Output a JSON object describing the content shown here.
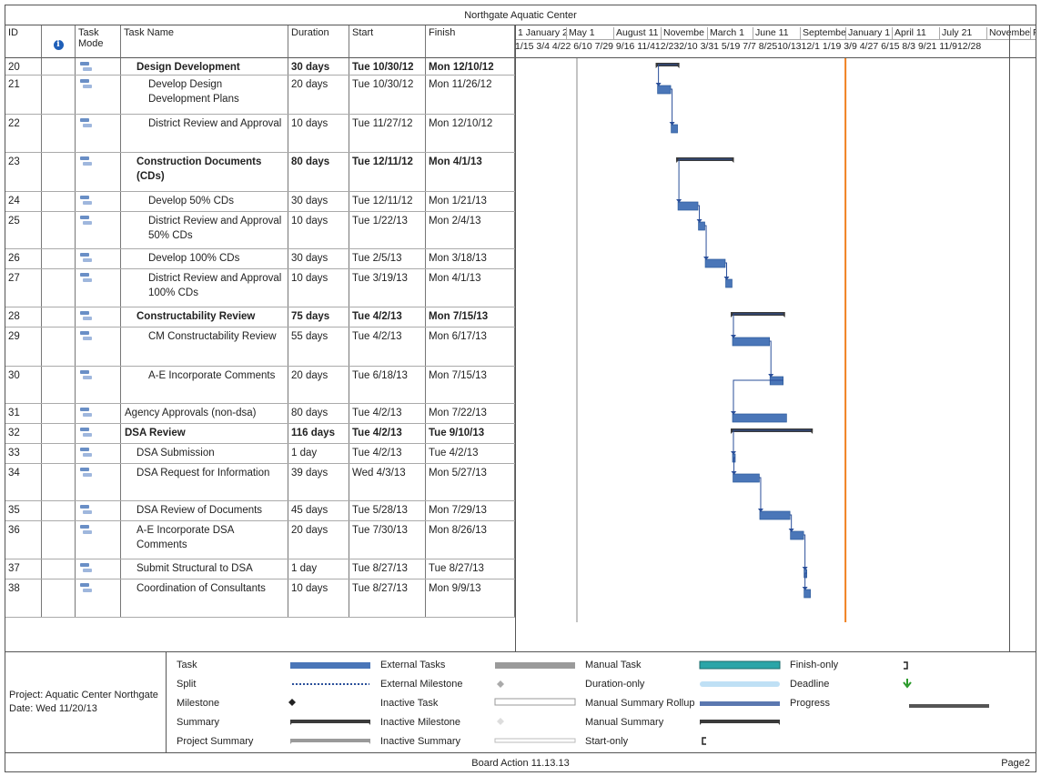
{
  "title": "Northgate Aquatic Center",
  "columns": {
    "id": "ID",
    "task_mode": "Task Mode",
    "task_name": "Task Name",
    "duration": "Duration",
    "start": "Start",
    "finish": "Finish"
  },
  "timescale_upper": [
    {
      "label": "1 January 2"
    },
    {
      "label": "May 1"
    },
    {
      "label": "August 11"
    },
    {
      "label": "Novembe"
    },
    {
      "label": "March 1"
    },
    {
      "label": "June 11"
    },
    {
      "label": "Septembe"
    },
    {
      "label": "January 1"
    },
    {
      "label": "April 11"
    },
    {
      "label": "July 21"
    },
    {
      "label": "Novembe"
    },
    {
      "label": "F"
    }
  ],
  "timescale_lower": "1/15  3/4  4/22 6/10 7/29 9/16 11/412/232/10 3/31 5/19  7/7  8/2510/1312/1 1/19  3/9  4/27 6/15  8/3  9/21 11/912/28",
  "tasks": [
    {
      "id": "20",
      "name": "Design Development",
      "duration": "30 days",
      "start": "Tue 10/30/12",
      "finish": "Mon 12/10/12",
      "bold": true,
      "indent": 1,
      "summary": true,
      "s": "2012-10-30",
      "f": "2012-12-10"
    },
    {
      "id": "21",
      "name": "Develop Design Development Plans",
      "duration": "20 days",
      "start": "Tue 10/30/12",
      "finish": "Mon 11/26/12",
      "bold": false,
      "indent": 2,
      "summary": false,
      "s": "2012-10-30",
      "f": "2012-11-26"
    },
    {
      "id": "22",
      "name": "District Review and Approval",
      "duration": "10 days",
      "start": "Tue 11/27/12",
      "finish": "Mon 12/10/12",
      "bold": false,
      "indent": 2,
      "summary": false,
      "s": "2012-11-27",
      "f": "2012-12-10"
    },
    {
      "id": "23",
      "name": "Construction Documents (CDs)",
      "duration": "80 days",
      "start": "Tue 12/11/12",
      "finish": "Mon 4/1/13",
      "bold": true,
      "indent": 1,
      "summary": true,
      "s": "2012-12-11",
      "f": "2013-04-01"
    },
    {
      "id": "24",
      "name": "Develop 50% CDs",
      "duration": "30 days",
      "start": "Tue 12/11/12",
      "finish": "Mon 1/21/13",
      "bold": false,
      "indent": 2,
      "summary": false,
      "s": "2012-12-11",
      "f": "2013-01-21"
    },
    {
      "id": "25",
      "name": "District Review and Approval 50% CDs",
      "duration": "10 days",
      "start": "Tue 1/22/13",
      "finish": "Mon 2/4/13",
      "bold": false,
      "indent": 2,
      "summary": false,
      "s": "2013-01-22",
      "f": "2013-02-04"
    },
    {
      "id": "26",
      "name": "Develop 100% CDs",
      "duration": "30 days",
      "start": "Tue 2/5/13",
      "finish": "Mon 3/18/13",
      "bold": false,
      "indent": 2,
      "summary": false,
      "s": "2013-02-05",
      "f": "2013-03-18"
    },
    {
      "id": "27",
      "name": "District Review and Approval 100% CDs",
      "duration": "10 days",
      "start": "Tue 3/19/13",
      "finish": "Mon 4/1/13",
      "bold": false,
      "indent": 2,
      "summary": false,
      "s": "2013-03-19",
      "f": "2013-04-01"
    },
    {
      "id": "28",
      "name": "Constructability Review",
      "duration": "75 days",
      "start": "Tue 4/2/13",
      "finish": "Mon 7/15/13",
      "bold": true,
      "indent": 1,
      "summary": true,
      "s": "2013-04-02",
      "f": "2013-07-15"
    },
    {
      "id": "29",
      "name": "CM Constructability Review",
      "duration": "55 days",
      "start": "Tue 4/2/13",
      "finish": "Mon 6/17/13",
      "bold": false,
      "indent": 2,
      "summary": false,
      "s": "2013-04-02",
      "f": "2013-06-17"
    },
    {
      "id": "30",
      "name": "A-E Incorporate Comments",
      "duration": "20 days",
      "start": "Tue 6/18/13",
      "finish": "Mon 7/15/13",
      "bold": false,
      "indent": 2,
      "summary": false,
      "s": "2013-06-18",
      "f": "2013-07-15"
    },
    {
      "id": "31",
      "name": "Agency Approvals (non-dsa)",
      "duration": "80 days",
      "start": "Tue 4/2/13",
      "finish": "Mon 7/22/13",
      "bold": false,
      "indent": 0,
      "summary": false,
      "s": "2013-04-02",
      "f": "2013-07-22"
    },
    {
      "id": "32",
      "name": "DSA Review",
      "duration": "116 days",
      "start": "Tue 4/2/13",
      "finish": "Tue 9/10/13",
      "bold": true,
      "indent": 0,
      "summary": true,
      "s": "2013-04-02",
      "f": "2013-09-10"
    },
    {
      "id": "33",
      "name": "DSA Submission",
      "duration": "1 day",
      "start": "Tue 4/2/13",
      "finish": "Tue 4/2/13",
      "bold": false,
      "indent": 1,
      "summary": false,
      "s": "2013-04-02",
      "f": "2013-04-02"
    },
    {
      "id": "34",
      "name": "DSA Request for Information",
      "duration": "39 days",
      "start": "Wed 4/3/13",
      "finish": "Mon 5/27/13",
      "bold": false,
      "indent": 1,
      "summary": false,
      "s": "2013-04-03",
      "f": "2013-05-27"
    },
    {
      "id": "35",
      "name": "DSA Review of Documents",
      "duration": "45 days",
      "start": "Tue 5/28/13",
      "finish": "Mon 7/29/13",
      "bold": false,
      "indent": 1,
      "summary": false,
      "s": "2013-05-28",
      "f": "2013-07-29"
    },
    {
      "id": "36",
      "name": "A-E Incorporate DSA Comments",
      "duration": "20 days",
      "start": "Tue 7/30/13",
      "finish": "Mon 8/26/13",
      "bold": false,
      "indent": 1,
      "summary": false,
      "s": "2013-07-30",
      "f": "2013-08-26"
    },
    {
      "id": "37",
      "name": "Submit Structural to DSA",
      "duration": "1 day",
      "start": "Tue 8/27/13",
      "finish": "Tue 8/27/13",
      "bold": false,
      "indent": 1,
      "summary": false,
      "s": "2013-08-27",
      "f": "2013-08-27"
    },
    {
      "id": "38",
      "name": "Coordination of Consultants",
      "duration": "10 days",
      "start": "Tue 8/27/13",
      "finish": "Mon 9/9/13",
      "bold": false,
      "indent": 1,
      "summary": false,
      "s": "2013-08-27",
      "f": "2013-09-09"
    }
  ],
  "status_date": "2013-11-20",
  "project_info": {
    "project": "Project: Aquatic Center Northgate",
    "date": "Date: Wed 11/20/13"
  },
  "legend": {
    "col1": [
      "Task",
      "Split",
      "Milestone",
      "Summary",
      "Project Summary"
    ],
    "col2": [
      "External Tasks",
      "External Milestone",
      "Inactive Task",
      "Inactive Milestone",
      "Inactive Summary"
    ],
    "col3": [
      "Manual Task",
      "Duration-only",
      "Manual Summary Rollup",
      "Manual Summary",
      "Start-only"
    ],
    "col4": [
      "Finish-only",
      "Deadline",
      "Progress"
    ]
  },
  "footer": {
    "board_action": "Board Action 11.13.13",
    "page": "Page2"
  },
  "colors": {
    "task_bar": "#4a76b8",
    "summary_bar": "#3a3a3a",
    "status_line": "#f08020",
    "link": "#2a4f9a"
  }
}
